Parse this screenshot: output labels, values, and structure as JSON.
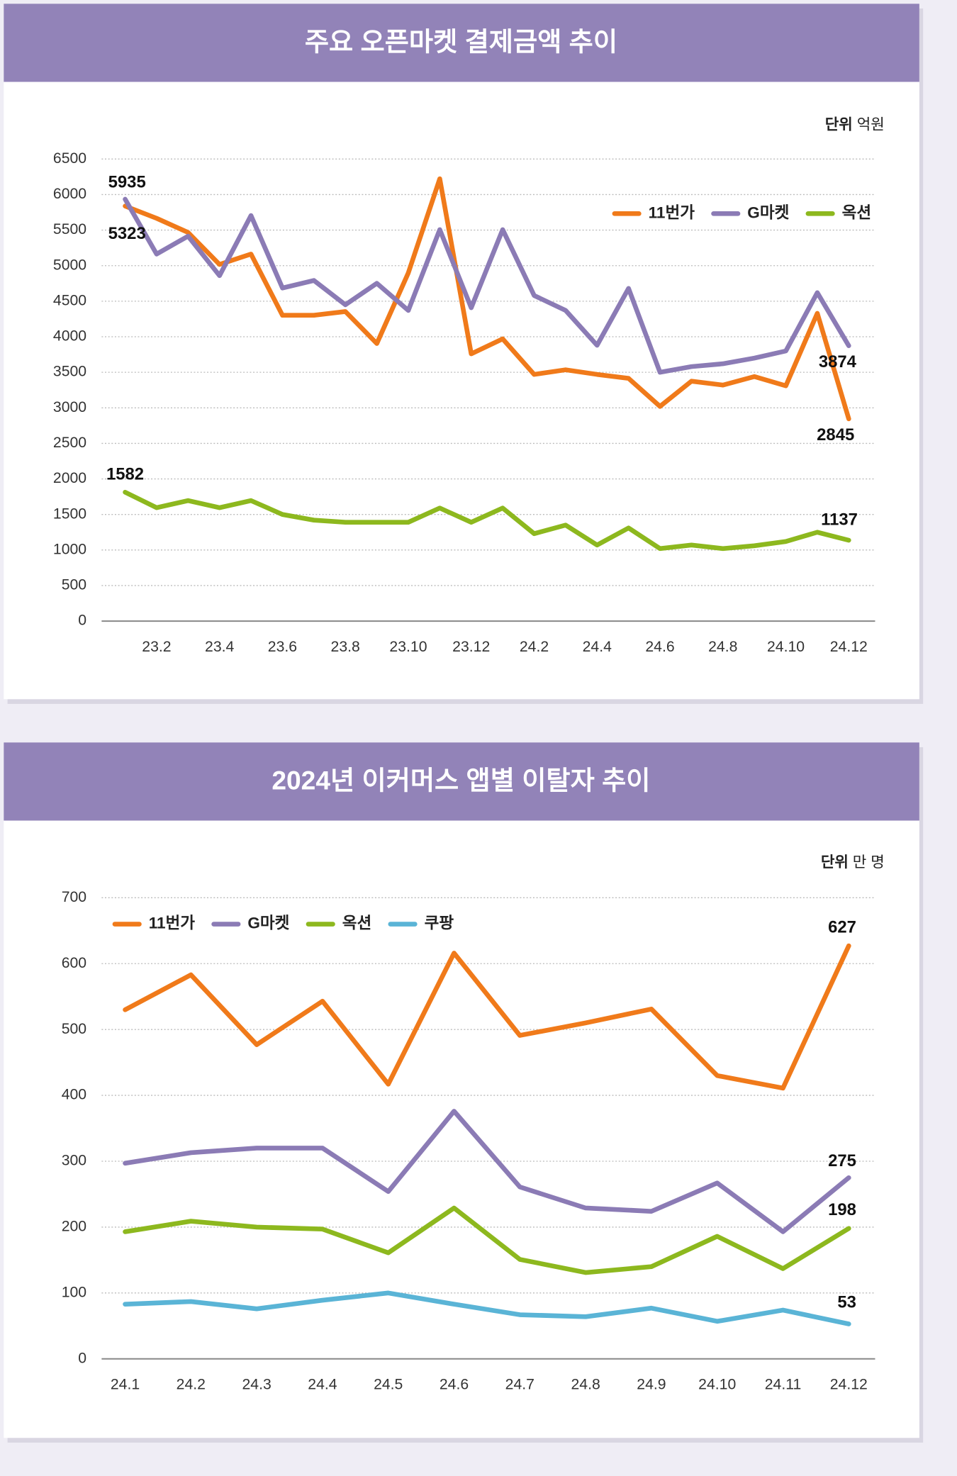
{
  "chart_data": [
    {
      "type": "line",
      "title": "주요 오픈마켓 결제금액 추이",
      "unit_label": "단위",
      "unit": "억원",
      "categories": [
        null,
        "23.2",
        null,
        "23.4",
        null,
        "23.6",
        null,
        "23.8",
        null,
        "23.10",
        null,
        "23.12",
        null,
        "24.2",
        null,
        "24.4",
        null,
        "24.6",
        null,
        "24.8",
        null,
        "24.10",
        null,
        "24.12"
      ],
      "series": [
        {
          "name": "11번가",
          "color": "#f07a1a",
          "values": [
            5838,
            5666,
            5467,
            5017,
            5163,
            4302,
            4302,
            4355,
            3905,
            4898,
            6222,
            3760,
            3970,
            3470,
            3535,
            3470,
            3415,
            3020,
            3375,
            3320,
            3440,
            3310,
            4330,
            2845
          ],
          "value_labels": [
            null,
            null,
            null,
            null,
            null,
            null,
            null,
            null,
            null,
            null,
            null,
            null,
            null,
            null,
            null,
            null,
            null,
            null,
            null,
            null,
            null,
            null,
            null,
            "2845"
          ]
        },
        {
          "name": "G마켓",
          "color": "#8b7bb5",
          "values": [
            5935,
            5163,
            5415,
            4860,
            5705,
            4686,
            4792,
            4450,
            4752,
            4370,
            5507,
            4408,
            5507,
            4580,
            4370,
            3880,
            4680,
            3500,
            3580,
            3620,
            3700,
            3800,
            4620,
            3874
          ],
          "value_labels": [
            "5935",
            null,
            null,
            null,
            null,
            null,
            null,
            null,
            null,
            null,
            null,
            null,
            null,
            null,
            null,
            null,
            null,
            null,
            null,
            null,
            null,
            null,
            null,
            "3874"
          ]
        },
        {
          "name": "옥션",
          "color": "#8db81e",
          "values": [
            1813,
            1595,
            1695,
            1595,
            1695,
            1500,
            1420,
            1390,
            1390,
            1390,
            1590,
            1390,
            1590,
            1230,
            1350,
            1070,
            1310,
            1020,
            1070,
            1020,
            1060,
            1120,
            1250,
            1137
          ],
          "value_labels": [
            null,
            null,
            null,
            null,
            null,
            null,
            null,
            null,
            null,
            null,
            null,
            null,
            null,
            null,
            null,
            null,
            null,
            null,
            null,
            null,
            null,
            null,
            null,
            "1137"
          ]
        }
      ],
      "annotations": [
        "5323",
        "1582"
      ],
      "ylim": [
        0,
        6500
      ],
      "yticks": [
        0,
        500,
        1000,
        1500,
        2000,
        2500,
        3000,
        3500,
        4000,
        4500,
        5000,
        5500,
        6000,
        6500
      ],
      "grid": true,
      "legend": "top-right"
    },
    {
      "type": "line",
      "title": "2024년 이커머스 앱별 이탈자 추이",
      "unit_label": "단위",
      "unit": "만 명",
      "categories": [
        "24.1",
        "24.2",
        "24.3",
        "24.4",
        "24.5",
        "24.6",
        "24.7",
        "24.8",
        "24.9",
        "24.10",
        "24.11",
        "24.12"
      ],
      "series": [
        {
          "name": "11번가",
          "color": "#f07a1a",
          "values": [
            530,
            583,
            477,
            543,
            417,
            616,
            491,
            510,
            531,
            430,
            411,
            627
          ],
          "value_labels": [
            null,
            null,
            null,
            null,
            null,
            null,
            null,
            null,
            null,
            null,
            null,
            "627"
          ]
        },
        {
          "name": "G마켓",
          "color": "#8b7bb5",
          "values": [
            297,
            313,
            320,
            320,
            254,
            376,
            261,
            229,
            224,
            267,
            193,
            275
          ],
          "value_labels": [
            null,
            null,
            null,
            null,
            null,
            null,
            null,
            null,
            null,
            null,
            null,
            "275"
          ]
        },
        {
          "name": "옥션",
          "color": "#8db81e",
          "values": [
            193,
            209,
            200,
            197,
            161,
            229,
            151,
            131,
            140,
            186,
            137,
            198
          ],
          "value_labels": [
            null,
            null,
            null,
            null,
            null,
            null,
            null,
            null,
            null,
            null,
            null,
            "198"
          ]
        },
        {
          "name": "쿠팡",
          "color": "#5ab4d6",
          "values": [
            83,
            87,
            76,
            89,
            100,
            83,
            67,
            64,
            77,
            57,
            74,
            53
          ],
          "value_labels": [
            null,
            null,
            null,
            null,
            null,
            null,
            null,
            null,
            null,
            null,
            null,
            "53"
          ]
        }
      ],
      "ylim": [
        0,
        700
      ],
      "yticks": [
        0,
        100,
        200,
        300,
        400,
        500,
        600,
        700
      ],
      "grid": true,
      "legend": "top-left"
    }
  ]
}
